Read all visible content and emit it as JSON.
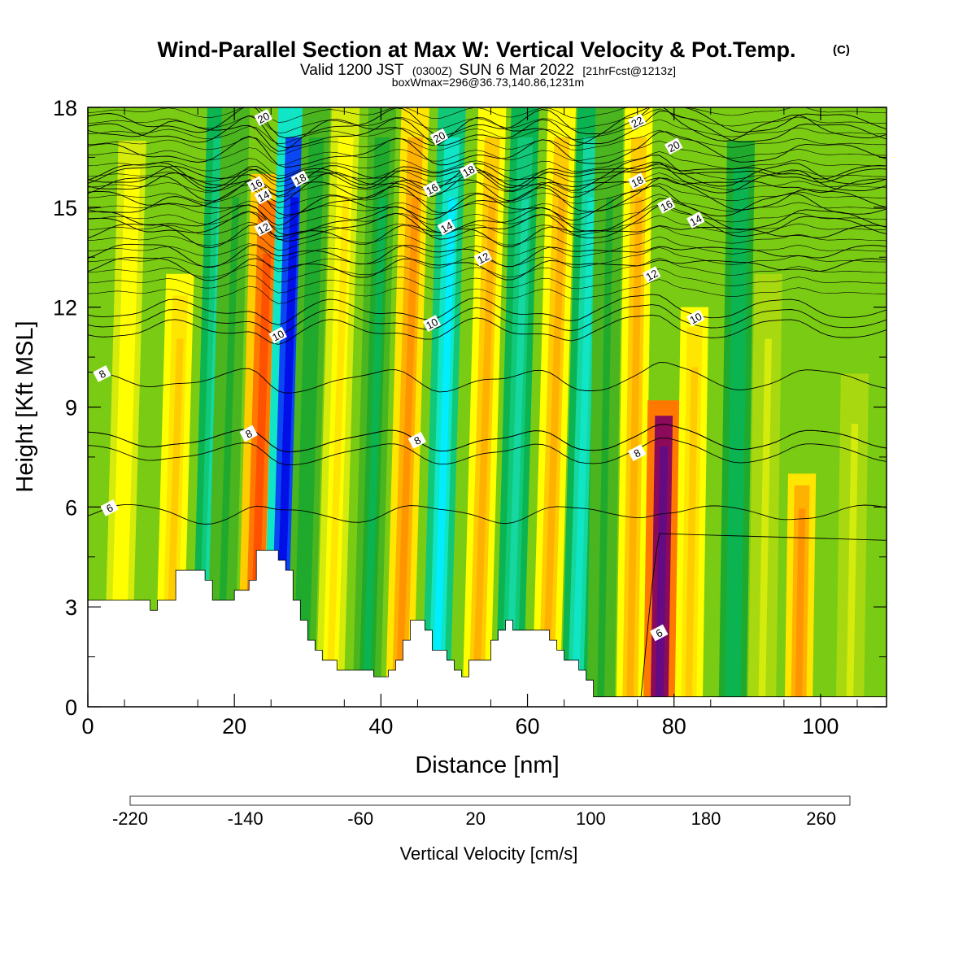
{
  "chart_data": {
    "type": "heatmap",
    "title": "Wind-Parallel Section at Max W: Vertical Velocity & Pot.Temp.",
    "title_mark": "(C)",
    "subtitle_main_a": "Valid 1200 JST",
    "subtitle_small_a": "(0300Z)",
    "subtitle_main_b": "SUN 6 Mar 2022",
    "subtitle_small_b": "[21hrFcst@1213z]",
    "subtitle2": "boxWmax=296@36.73,140.86,1231m",
    "xlabel": "Distance [nm]",
    "ylabel": "Height [Kft MSL]",
    "xlim": [
      0,
      109
    ],
    "ylim": [
      0,
      18
    ],
    "x_ticks": [
      "0",
      "20",
      "40",
      "60",
      "80",
      "100"
    ],
    "y_ticks": [
      "0",
      "3",
      "6",
      "9",
      "12",
      "15",
      "18"
    ],
    "colorbar": {
      "title": "Vertical Velocity [cm/s]",
      "range": [
        -220,
        280
      ],
      "tick_labels": [
        "-220",
        "-140",
        "-60",
        "20",
        "100",
        "180",
        "260"
      ],
      "colors": [
        "#0010e6",
        "#0a46f2",
        "#0a82f5",
        "#00b6f8",
        "#00eeff",
        "#10e5c5",
        "#14d8a0",
        "#10c878",
        "#0bb450",
        "#20aa2d",
        "#4ab51e",
        "#7acb14",
        "#a8d910",
        "#d4eb0c",
        "#ffff00",
        "#ffe600",
        "#ffcc00",
        "#ffb100",
        "#ff9400",
        "#ff7800",
        "#ff5200",
        "#ff2c00",
        "#e6001e",
        "#be0a41",
        "#8c0a5a",
        "#640a82"
      ]
    },
    "vertical_velocity_bands": [
      {
        "x": 4,
        "w": 60,
        "top": 17
      },
      {
        "x": 11,
        "w": 100,
        "top": 13
      },
      {
        "x": 16,
        "w": -90,
        "top": 18
      },
      {
        "x": 18,
        "w": -30,
        "top": 18
      },
      {
        "x": 22.5,
        "w": 180,
        "top": 16
      },
      {
        "x": 26,
        "w": -215,
        "top": 18
      },
      {
        "x": 29,
        "w": -40,
        "top": 18
      },
      {
        "x": 33,
        "w": 70,
        "top": 18
      },
      {
        "x": 38,
        "w": -50,
        "top": 18
      },
      {
        "x": 42.5,
        "w": 130,
        "top": 18
      },
      {
        "x": 47.5,
        "w": -130,
        "top": 18
      },
      {
        "x": 53,
        "w": 110,
        "top": 18
      },
      {
        "x": 57.5,
        "w": -100,
        "top": 18
      },
      {
        "x": 62.5,
        "w": 110,
        "top": 18
      },
      {
        "x": 66.5,
        "w": -120,
        "top": 18
      },
      {
        "x": 70,
        "w": -30,
        "top": 18
      },
      {
        "x": 74,
        "w": 110,
        "top": 18
      },
      {
        "x": 78,
        "w": 296,
        "top": 9.2
      },
      {
        "x": 82,
        "w": 90,
        "top": 12
      },
      {
        "x": 88,
        "w": -60,
        "top": 17
      },
      {
        "x": 92,
        "w": 30,
        "top": 13
      },
      {
        "x": 97,
        "w": 130,
        "top": 7
      },
      {
        "x": 104,
        "w": 30,
        "top": 10
      }
    ],
    "terrain": {
      "x": [
        0,
        8.5,
        8.5,
        9.5,
        9.5,
        12,
        12,
        16,
        16,
        17,
        17,
        20,
        20,
        22,
        22,
        23,
        23,
        26,
        26,
        27,
        27,
        28,
        28,
        29,
        29,
        30,
        30,
        31,
        31,
        32,
        32,
        34,
        34,
        39,
        39,
        41,
        41,
        42,
        42,
        43,
        43,
        44,
        44,
        46,
        46,
        47,
        47,
        49,
        49,
        50,
        50,
        51,
        51,
        52,
        52,
        55,
        55,
        56,
        56,
        57,
        57,
        58,
        58,
        63,
        63,
        64,
        64,
        65,
        65,
        67,
        67,
        68,
        68,
        69,
        69,
        109
      ],
      "h": [
        3.2,
        3.2,
        2.9,
        2.9,
        3.2,
        3.2,
        4.1,
        4.1,
        3.8,
        3.8,
        3.2,
        3.2,
        3.5,
        3.5,
        3.8,
        3.8,
        4.7,
        4.7,
        4.4,
        4.4,
        4.1,
        4.1,
        3.2,
        3.2,
        2.6,
        2.6,
        2.0,
        2.0,
        1.7,
        1.7,
        1.4,
        1.4,
        1.1,
        1.1,
        0.9,
        0.9,
        1.1,
        1.1,
        1.4,
        1.4,
        2.0,
        2.0,
        2.6,
        2.6,
        2.3,
        2.3,
        1.7,
        1.7,
        1.4,
        1.4,
        1.1,
        1.1,
        0.9,
        0.9,
        1.4,
        1.4,
        2.0,
        2.0,
        2.3,
        2.3,
        2.6,
        2.6,
        2.3,
        2.3,
        2.0,
        2.0,
        1.7,
        1.7,
        1.4,
        1.4,
        1.1,
        1.1,
        0.8,
        0.8,
        0.3,
        0.3
      ]
    },
    "theta_contours": [
      {
        "level": 6,
        "base": 5.8,
        "label_x": 3
      },
      {
        "level": 8,
        "base": 9.8,
        "label_x": 2
      },
      {
        "level": 8,
        "base": 8.0,
        "label_x": 22
      },
      {
        "level": 8,
        "base": 8.0,
        "label_x": 45
      },
      {
        "level": 8,
        "base": 7.6,
        "label_x": 75
      },
      {
        "level": 10,
        "base": 11.3,
        "label_x": 26
      },
      {
        "level": 10,
        "base": 11.6,
        "label_x": 47
      },
      {
        "level": 10,
        "base": 11.9,
        "label_x": 83
      },
      {
        "level": 12,
        "base": 14.2,
        "label_x": 24
      },
      {
        "level": 12,
        "base": 13.6,
        "label_x": 54
      },
      {
        "level": 12,
        "base": 13.2,
        "label_x": 77
      },
      {
        "level": 14,
        "base": 15.2,
        "label_x": 24
      },
      {
        "level": 14,
        "base": 14.6,
        "label_x": 49
      },
      {
        "level": 14,
        "base": 14.4,
        "label_x": 83
      },
      {
        "level": 16,
        "base": 15.9,
        "label_x": 23
      },
      {
        "level": 16,
        "base": 15.7,
        "label_x": 47
      },
      {
        "level": 16,
        "base": 15.0,
        "label_x": 79
      },
      {
        "level": 18,
        "base": 15.6,
        "label_x": 29
      },
      {
        "level": 18,
        "base": 16.0,
        "label_x": 52
      },
      {
        "level": 18,
        "base": 15.9,
        "label_x": 75
      },
      {
        "level": 20,
        "base": 17.5,
        "label_x": 24
      },
      {
        "level": 20,
        "base": 17.2,
        "label_x": 48
      },
      {
        "level": 20,
        "base": 16.6,
        "label_x": 80
      },
      {
        "level": 22,
        "base": 17.3,
        "label_x": 75
      }
    ],
    "low_level_contours": [
      {
        "level": 6,
        "label_x": 78,
        "label_y": 2.2
      }
    ]
  }
}
